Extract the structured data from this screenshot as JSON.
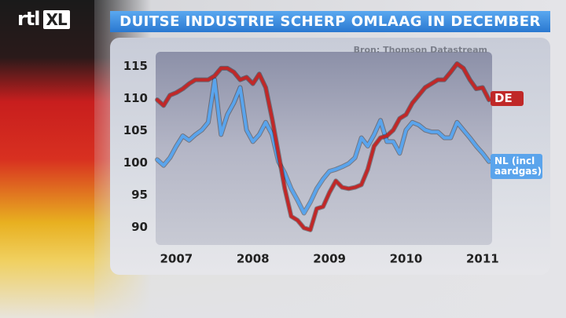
{
  "logo": {
    "rtl": "rtl",
    "xl": "XL"
  },
  "chart_data": {
    "type": "line",
    "title": "DUITSE INDUSTRIE SCHERP OMLAAG IN DECEMBER",
    "source": "Bron: Thomson Datastream",
    "categories": [
      null,
      null,
      null,
      "2007",
      null,
      null,
      null,
      null,
      null,
      null,
      null,
      null,
      null,
      null,
      null,
      "2008",
      null,
      null,
      null,
      null,
      null,
      null,
      null,
      null,
      null,
      null,
      null,
      "2009",
      null,
      null,
      null,
      null,
      null,
      null,
      null,
      null,
      null,
      null,
      null,
      "2010",
      null,
      null,
      null,
      null,
      null,
      null,
      null,
      null,
      null,
      null,
      null,
      "2011",
      null
    ],
    "series": [
      {
        "name": "DE",
        "color": "#c02828",
        "values": [
          109.8,
          108.9,
          110.5,
          110.9,
          111.5,
          112.3,
          112.9,
          112.9,
          112.9,
          113.5,
          114.7,
          114.7,
          114.1,
          112.9,
          113.3,
          112.3,
          113.8,
          111.7,
          106.9,
          101.5,
          96,
          91.7,
          91.1,
          89.9,
          89.6,
          92.9,
          93.2,
          95.4,
          97.2,
          96.2,
          96,
          96.2,
          96.6,
          99,
          102.6,
          103.9,
          104.2,
          105.1,
          106.9,
          107.5,
          109.3,
          110.5,
          111.7,
          112.3,
          112.9,
          112.9,
          114.1,
          115.4,
          114.7,
          112.9,
          111.5,
          111.7,
          109.8
        ]
      },
      {
        "name": "NL (incl aardgas)",
        "color": "#5aa4ec",
        "values": [
          100.5,
          99.6,
          100.8,
          102.6,
          104.2,
          103.5,
          104.4,
          105.1,
          106.3,
          112.9,
          104.4,
          107.5,
          109.3,
          111.7,
          105.1,
          103.3,
          104.4,
          106.3,
          104.4,
          100.2,
          98.4,
          96,
          94.2,
          92.2,
          93.9,
          96,
          97.5,
          98.7,
          99,
          99.4,
          99.9,
          100.8,
          103.9,
          102.6,
          104.4,
          106.6,
          103.3,
          103.3,
          101.5,
          105.1,
          106.3,
          105.9,
          105.1,
          104.8,
          104.8,
          103.9,
          103.9,
          106.3,
          105.1,
          103.9,
          102.6,
          101.5,
          100.2
        ]
      }
    ],
    "ylim": [
      87.5,
      117
    ],
    "yticks": [
      90,
      95,
      100,
      105,
      110,
      115
    ],
    "grid": false
  }
}
